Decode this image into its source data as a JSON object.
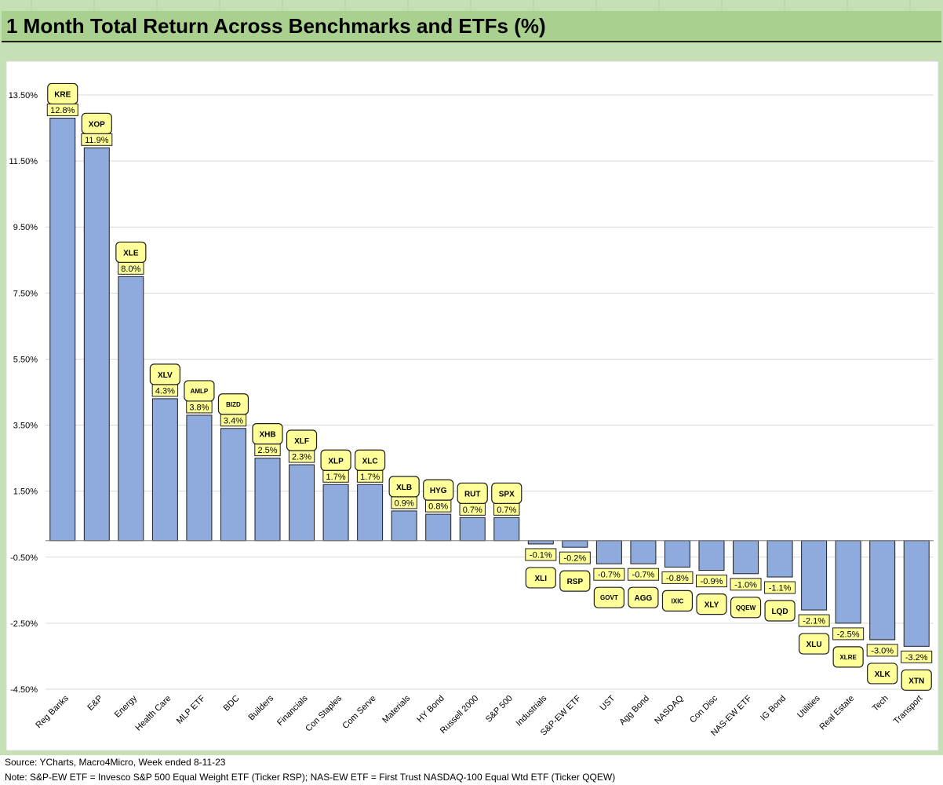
{
  "title": "1 Month Total Return Across Benchmarks and ETFs (%)",
  "footer": {
    "source": "Source: YCharts, Macro4Micro, Week ended 8-11-23",
    "note": "Note: S&P-EW ETF = Invesco S&P 500 Equal Weight ETF (Ticker RSP); NAS-EW ETF = First Trust NASDAQ-100 Equal Wtd ETF (Ticker QQEW)"
  },
  "colors": {
    "frame": "#c5e0b4",
    "title_bar": "#a9d08e",
    "bar_fill": "#8faadc",
    "label_fill": "#ffff99",
    "grid": "#d9d9d9"
  },
  "chart_data": {
    "type": "bar",
    "title": "1 Month Total Return Across Benchmarks and ETFs (%)",
    "xlabel": "",
    "ylabel": "",
    "ylim": [
      -4.5,
      13.5
    ],
    "y_ticks": [
      13.5,
      11.5,
      9.5,
      7.5,
      5.5,
      3.5,
      1.5,
      -0.5,
      -2.5,
      -4.5
    ],
    "y_tick_labels": [
      "13.50%",
      "11.50%",
      "9.50%",
      "7.50%",
      "5.50%",
      "3.50%",
      "1.50%",
      "-0.50%",
      "-2.50%",
      "-4.50%"
    ],
    "grid": true,
    "categories": [
      "Reg Banks",
      "E&P",
      "Energy",
      "Health Care",
      "MLP ETF",
      "BDC",
      "Builders",
      "Financials",
      "Con Staples",
      "Com Serve",
      "Materials",
      "HY Bond",
      "Russell 2000",
      "S&P 500",
      "Industrials",
      "S&P-EW ETF",
      "UST",
      "Agg Bond",
      "NASDAQ",
      "Con Disc",
      "NAS-EW ETF",
      "IG Bond",
      "Utilities",
      "Real Estate",
      "Tech",
      "Transport"
    ],
    "tickers": [
      "KRE",
      "XOP",
      "XLE",
      "XLV",
      "AMLP",
      "BIZD",
      "XHB",
      "XLF",
      "XLP",
      "XLC",
      "XLB",
      "HYG",
      "RUT",
      "SPX",
      "XLI",
      "RSP",
      "GOVT",
      "AGG",
      "IXIC",
      "XLY",
      "QQEW",
      "LQD",
      "XLU",
      "XLRE",
      "XLK",
      "XTN"
    ],
    "values": [
      12.8,
      11.9,
      8.0,
      4.3,
      3.8,
      3.4,
      2.5,
      2.3,
      1.7,
      1.7,
      0.9,
      0.8,
      0.7,
      0.7,
      -0.1,
      -0.2,
      -0.7,
      -0.7,
      -0.8,
      -0.9,
      -1.0,
      -1.1,
      -2.1,
      -2.5,
      -3.0,
      -3.2
    ],
    "value_labels": [
      "12.8%",
      "11.9%",
      "8.0%",
      "4.3%",
      "3.8%",
      "3.4%",
      "2.5%",
      "2.3%",
      "1.7%",
      "1.7%",
      "0.9%",
      "0.8%",
      "0.7%",
      "0.7%",
      "-0.1%",
      "-0.2%",
      "-0.7%",
      "-0.7%",
      "-0.8%",
      "-0.9%",
      "-1.0%",
      "-1.1%",
      "-2.1%",
      "-2.5%",
      "-3.0%",
      "-3.2%"
    ]
  }
}
